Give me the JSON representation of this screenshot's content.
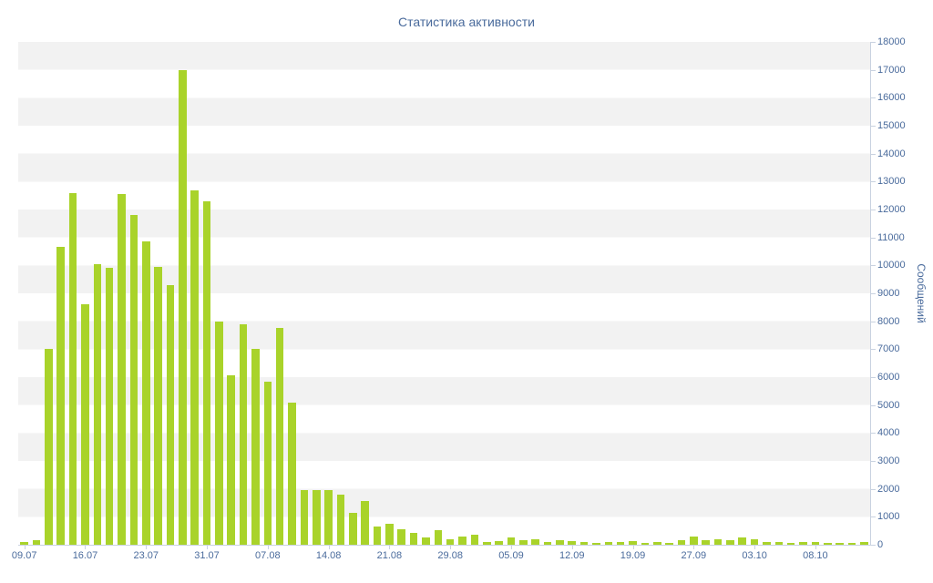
{
  "chart_data": {
    "type": "bar",
    "title": "Статистика активности",
    "xlabel": "",
    "ylabel": "Сообщений",
    "ylim": [
      0,
      18000
    ],
    "grid": "horizontal-stripes",
    "legend": "none",
    "y_tick_step": 1000,
    "y_tick_labels": [
      "0",
      "1000",
      "2000",
      "3000",
      "4000",
      "5000",
      "6000",
      "7000",
      "8000",
      "9000",
      "10000",
      "11000",
      "12000",
      "13000",
      "14000",
      "15000",
      "16000",
      "17000",
      "18000"
    ],
    "x_tick_labels": [
      "09.07",
      "16.07",
      "23.07",
      "31.07",
      "07.08",
      "14.08",
      "21.08",
      "29.08",
      "05.09",
      "12.09",
      "19.09",
      "27.09",
      "03.10",
      "08.10"
    ],
    "x_tick_indices": [
      0,
      5,
      10,
      15,
      20,
      25,
      30,
      35,
      40,
      45,
      50,
      55,
      60,
      65
    ],
    "values": [
      100,
      150,
      7000,
      10650,
      12600,
      8600,
      10050,
      9900,
      12550,
      11800,
      10850,
      9950,
      9300,
      17000,
      12700,
      12300,
      8000,
      6050,
      7900,
      7000,
      5850,
      7750,
      5100,
      1950,
      1950,
      1950,
      1800,
      1150,
      1550,
      650,
      750,
      550,
      420,
      260,
      520,
      200,
      300,
      350,
      100,
      140,
      260,
      160,
      200,
      100,
      160,
      130,
      100,
      60,
      100,
      90,
      120,
      70,
      100,
      80,
      150,
      300,
      160,
      200,
      150,
      250,
      200,
      90,
      110,
      70,
      100,
      90,
      60,
      80,
      50,
      90
    ],
    "colors": {
      "bar": "#a9d32a",
      "text": "#4a6b9c",
      "stripe": "#f2f2f2",
      "axis": "#c9d2e0"
    }
  }
}
